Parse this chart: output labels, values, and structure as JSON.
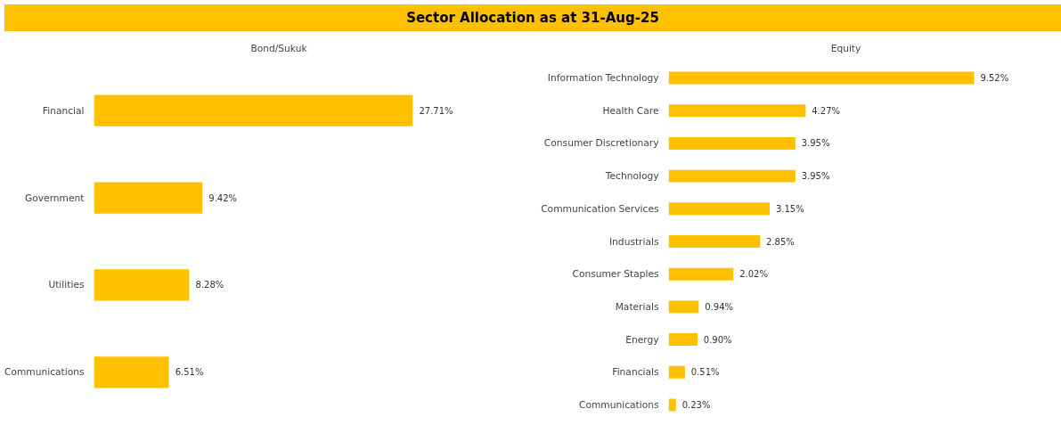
{
  "chart_data": [
    {
      "type": "bar",
      "orientation": "horizontal",
      "title": "Sector Allocation as at 31-Aug-25",
      "subtitle": "Bond/Sukuk",
      "categories": [
        "Financial",
        "Government",
        "Utilities",
        "Communications"
      ],
      "values": [
        27.71,
        9.42,
        8.28,
        6.51
      ],
      "value_labels": [
        "27.71%",
        "9.42%",
        "8.28%",
        "6.51%"
      ],
      "color": "#ffc000",
      "tick_labels": "y",
      "grid": false
    },
    {
      "type": "bar",
      "orientation": "horizontal",
      "subtitle": "Equity",
      "categories": [
        "Information Technology",
        "Health Care",
        "Consumer Discretionary",
        "Technology",
        "Communication Services",
        "Industrials",
        "Consumer Staples",
        "Materials",
        "Energy",
        "Financials",
        "Communications"
      ],
      "values": [
        9.52,
        4.27,
        3.95,
        3.95,
        3.15,
        2.85,
        2.02,
        0.94,
        0.9,
        0.51,
        0.23
      ],
      "value_labels": [
        "9.52%",
        "4.27%",
        "3.95%",
        "3.95%",
        "3.15%",
        "2.85%",
        "2.02%",
        "0.94%",
        "0.90%",
        "0.51%",
        "0.23%"
      ],
      "color": "#ffc000",
      "tick_labels": "y",
      "grid": false
    }
  ]
}
